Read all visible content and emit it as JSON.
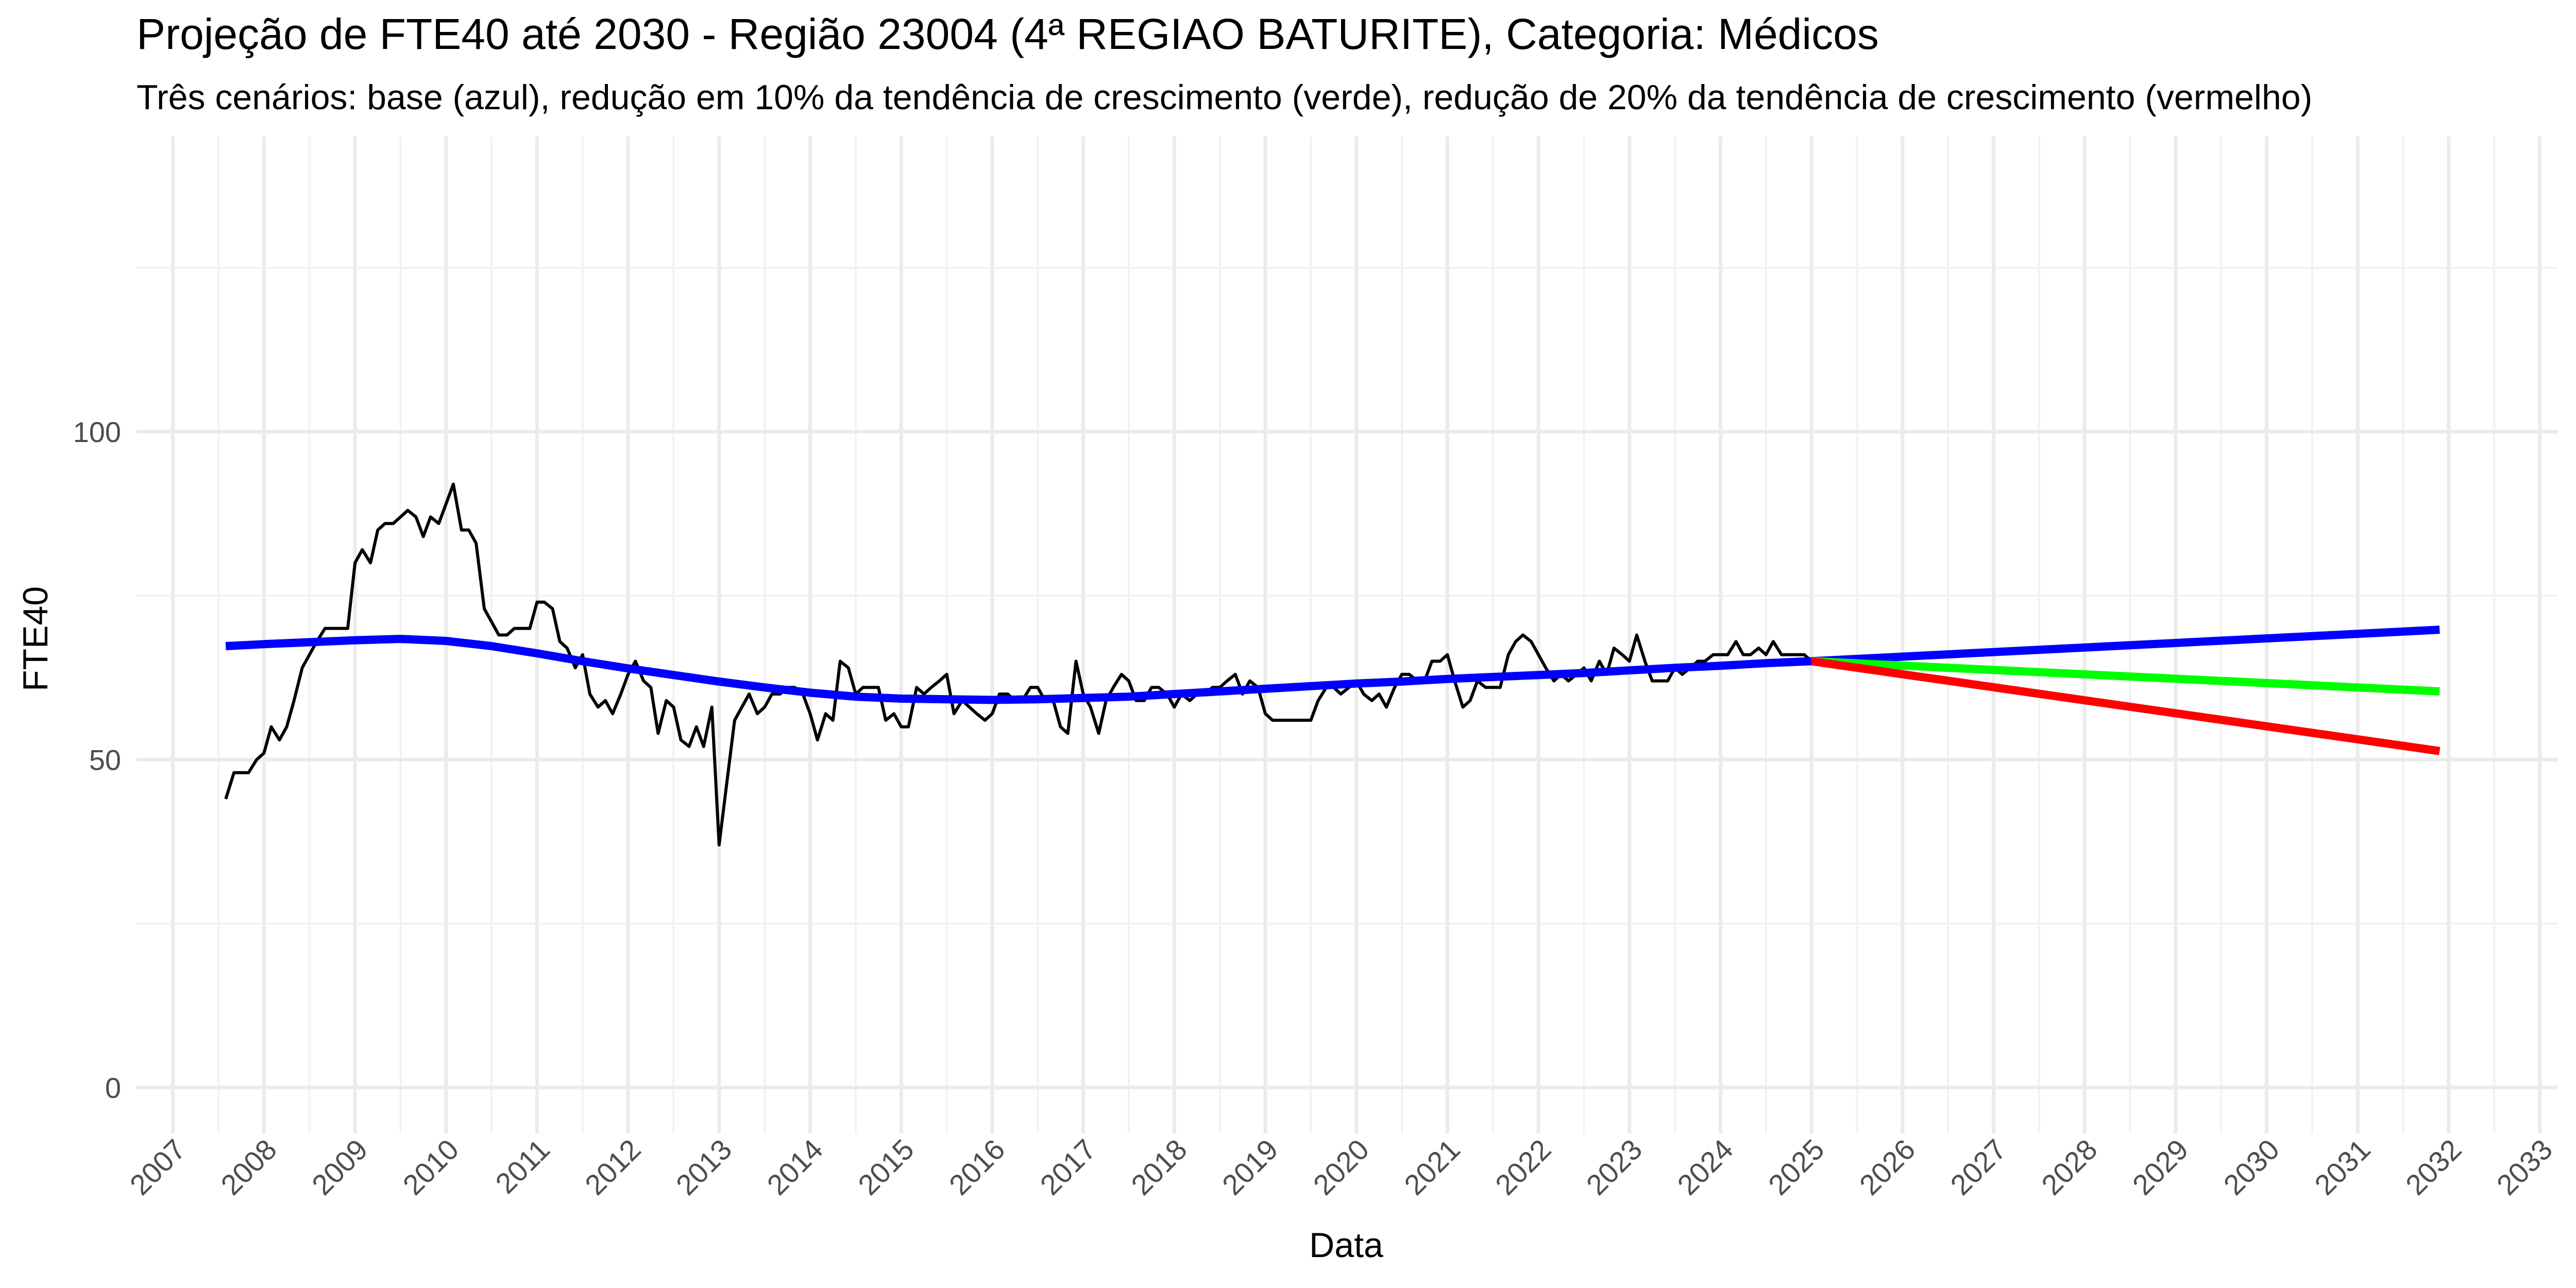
{
  "chart_data": {
    "type": "line",
    "title": "Projeção de FTE40 até 2030 - Região 23004 (4ª REGIAO BATURITE), Categoria: Médicos",
    "subtitle": "Três cenários: base (azul), redução em 10% da tendência de crescimento (verde), redução de 20% da tendência de crescimento (vermelho)",
    "xlabel": "Data",
    "ylabel": "FTE40",
    "xlim": [
      2006.6,
      2033.2
    ],
    "ylim": [
      -7,
      145
    ],
    "x_ticks": [
      "2007",
      "2008",
      "2009",
      "2010",
      "2011",
      "2012",
      "2013",
      "2014",
      "2015",
      "2016",
      "2017",
      "2018",
      "2019",
      "2020",
      "2021",
      "2022",
      "2023",
      "2024",
      "2025",
      "2026",
      "2027",
      "2028",
      "2029",
      "2030",
      "2031",
      "2032",
      "2033"
    ],
    "y_ticks": [
      0,
      50,
      100
    ],
    "y_minor": [
      25,
      75,
      125
    ],
    "grid": true,
    "legend": "none",
    "series": [
      {
        "color": "#000000",
        "x": [
          2007.58,
          2007.67,
          2007.75,
          2007.83,
          2007.92,
          2008.0,
          2008.08,
          2008.17,
          2008.25,
          2008.33,
          2008.42,
          2008.5,
          2008.58,
          2008.67,
          2008.75,
          2008.83,
          2008.92,
          2009.0,
          2009.08,
          2009.17,
          2009.25,
          2009.33,
          2009.42,
          2009.5,
          2009.58,
          2009.67,
          2009.75,
          2009.83,
          2009.92,
          2010.0,
          2010.08,
          2010.17,
          2010.25,
          2010.33,
          2010.42,
          2010.5,
          2010.58,
          2010.67,
          2010.75,
          2010.83,
          2010.92,
          2011.0,
          2011.08,
          2011.17,
          2011.25,
          2011.33,
          2011.42,
          2011.5,
          2011.58,
          2011.67,
          2011.75,
          2011.83,
          2011.92,
          2012.0,
          2012.08,
          2012.17,
          2012.25,
          2012.33,
          2012.42,
          2012.5,
          2012.58,
          2012.67,
          2012.75,
          2012.83,
          2012.92,
          2013.0,
          2013.08,
          2013.17,
          2013.25,
          2013.33,
          2013.42,
          2013.5,
          2013.58,
          2013.67,
          2013.75,
          2013.83,
          2013.92,
          2014.0,
          2014.08,
          2014.17,
          2014.25,
          2014.33,
          2014.42,
          2014.5,
          2014.58,
          2014.67,
          2014.75,
          2014.83,
          2014.92,
          2015.0,
          2015.08,
          2015.17,
          2015.25,
          2015.33,
          2015.42,
          2015.5,
          2015.58,
          2015.67,
          2015.75,
          2015.83,
          2015.92,
          2016.0,
          2016.08,
          2016.17,
          2016.25,
          2016.33,
          2016.42,
          2016.5,
          2016.58,
          2016.67,
          2016.75,
          2016.83,
          2016.92,
          2017.0,
          2017.08,
          2017.17,
          2017.25,
          2017.33,
          2017.42,
          2017.5,
          2017.58,
          2017.67,
          2017.75,
          2017.83,
          2017.92,
          2018.0,
          2018.08,
          2018.17,
          2018.25,
          2018.33,
          2018.42,
          2018.5,
          2018.58,
          2018.67,
          2018.75,
          2018.83,
          2018.92,
          2019.0,
          2019.08,
          2019.17,
          2019.25,
          2019.33,
          2019.42,
          2019.5,
          2019.58,
          2019.67,
          2019.75,
          2019.83,
          2019.92,
          2020.0,
          2020.08,
          2020.17,
          2020.25,
          2020.33,
          2020.42,
          2020.5,
          2020.58,
          2020.67,
          2020.75,
          2020.83,
          2020.92,
          2021.0,
          2021.08,
          2021.17,
          2021.25,
          2021.33,
          2021.42,
          2021.5,
          2021.58,
          2021.67,
          2021.75,
          2021.83,
          2021.92,
          2022.0,
          2022.08,
          2022.17,
          2022.25,
          2022.33,
          2022.42,
          2022.5,
          2022.58,
          2022.67,
          2022.75,
          2022.83,
          2022.92,
          2023.0,
          2023.08,
          2023.17,
          2023.25,
          2023.33,
          2023.42,
          2023.5,
          2023.58,
          2023.67,
          2023.75,
          2023.83,
          2023.92,
          2024.0,
          2024.08,
          2024.17,
          2024.25,
          2024.33,
          2024.42,
          2024.5,
          2024.58,
          2024.67,
          2024.75,
          2024.83,
          2024.92,
          2025.0
        ],
        "values": [
          44,
          48,
          48,
          48,
          50,
          51,
          55,
          53,
          55,
          59,
          64,
          66,
          68,
          70,
          70,
          70,
          70,
          80,
          82,
          80,
          85,
          86,
          86,
          87,
          88,
          87,
          84,
          87,
          86,
          89,
          92,
          85,
          85,
          83,
          73,
          71,
          69,
          69,
          70,
          70,
          70,
          74,
          74,
          73,
          68,
          67,
          64,
          66,
          60,
          58,
          59,
          57,
          60,
          63,
          65,
          62,
          61,
          54,
          59,
          58,
          53,
          52,
          55,
          52,
          58,
          37,
          46,
          56,
          58,
          60,
          57,
          58,
          60,
          60,
          61,
          61,
          60,
          57,
          53,
          57,
          56,
          65,
          64,
          60,
          61,
          61,
          61,
          56,
          57,
          55,
          55,
          61,
          60,
          61,
          62,
          63,
          57,
          59,
          58,
          57,
          56,
          57,
          60,
          60,
          59,
          59,
          61,
          61,
          59,
          59,
          55,
          54,
          65,
          60,
          58,
          54,
          59,
          61,
          63,
          62,
          59,
          59,
          61,
          61,
          60,
          58,
          60,
          59,
          60,
          60,
          61,
          61,
          62,
          63,
          60,
          62,
          61,
          57,
          56,
          56,
          56,
          56,
          56,
          56,
          59,
          61,
          61,
          60,
          61,
          62,
          60,
          59,
          60,
          58,
          61,
          63,
          63,
          62,
          62,
          65,
          65,
          66,
          62,
          58,
          59,
          62,
          61,
          61,
          61,
          66,
          68,
          69,
          68,
          66,
          64,
          62,
          63,
          62,
          63,
          64,
          62,
          65,
          63,
          67,
          66,
          65,
          69,
          65,
          62,
          62,
          62,
          64,
          63,
          64,
          65,
          65,
          66,
          66,
          66,
          68,
          66,
          66,
          67,
          66,
          68,
          66,
          66,
          66,
          66,
          65
        ]
      },
      {
        "color": "#0000ff",
        "x": [
          2007.58,
          2008.0,
          2008.5,
          2009.0,
          2009.5,
          2010.0,
          2010.5,
          2011.0,
          2011.5,
          2012.0,
          2012.5,
          2013.0,
          2013.5,
          2014.0,
          2014.5,
          2015.0,
          2015.5,
          2016.0,
          2016.5,
          2017.0,
          2017.5,
          2018.0,
          2018.5,
          2019.0,
          2019.5,
          2020.0,
          2020.5,
          2021.0,
          2021.5,
          2022.0,
          2022.5,
          2023.0,
          2023.5,
          2024.0,
          2024.5,
          2025.0
        ],
        "values": [
          67.3,
          67.6,
          67.9,
          68.2,
          68.4,
          68.1,
          67.3,
          66.2,
          65.0,
          63.9,
          62.9,
          61.9,
          61.0,
          60.2,
          59.6,
          59.3,
          59.2,
          59.1,
          59.2,
          59.4,
          59.6,
          60.0,
          60.4,
          60.8,
          61.2,
          61.6,
          61.9,
          62.3,
          62.6,
          62.9,
          63.2,
          63.6,
          64.0,
          64.3,
          64.7,
          65.0
        ]
      },
      {
        "color": "#0000ff",
        "x": [
          2025.0,
          2031.9
        ],
        "values": [
          65.0,
          69.8
        ]
      },
      {
        "color": "#00ff00",
        "x": [
          2025.0,
          2031.9
        ],
        "values": [
          65.0,
          60.4
        ]
      },
      {
        "color": "#ff0000",
        "x": [
          2025.0,
          2031.9
        ],
        "values": [
          65.0,
          51.3
        ]
      }
    ]
  }
}
